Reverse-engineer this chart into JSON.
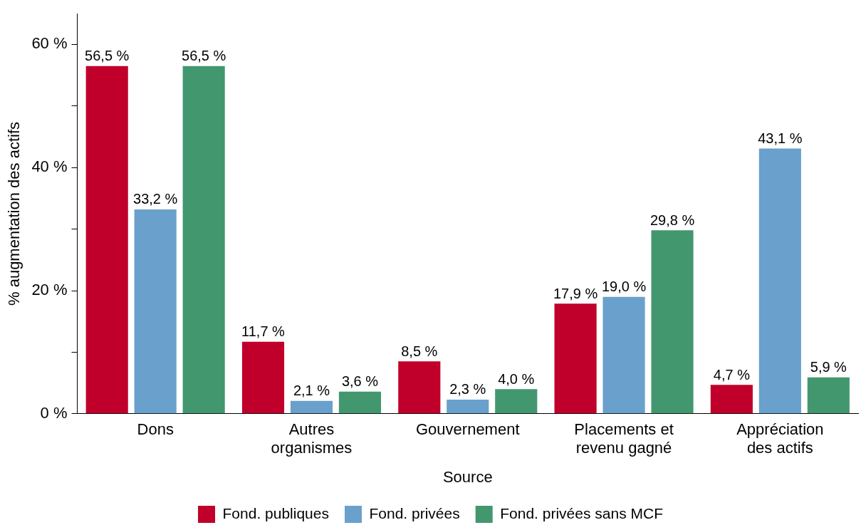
{
  "chart_data": {
    "type": "bar",
    "xlabel": "Source",
    "ylabel": "% augmentation des actifs",
    "categories": [
      "Dons",
      "Autres organismes",
      "Gouvernement",
      "Placements et revenu gagné",
      "Appréciation des actifs"
    ],
    "series": [
      {
        "name": "Fond. publiques",
        "color": "#c0002a",
        "values": [
          56.5,
          11.7,
          8.5,
          17.9,
          4.7
        ],
        "value_labels": [
          "56,5 %",
          "11,7 %",
          "8,5 %",
          "17,9 %",
          "4,7 %"
        ]
      },
      {
        "name": "Fond. privées",
        "color": "#6aa0cc",
        "values": [
          33.2,
          2.1,
          2.3,
          19.0,
          43.1
        ],
        "value_labels": [
          "33,2 %",
          "2,1 %",
          "2,3 %",
          "19,0 %",
          "43,1 %"
        ]
      },
      {
        "name": "Fond. privées sans MCF",
        "color": "#43976f",
        "values": [
          56.5,
          3.6,
          4.0,
          29.8,
          5.9
        ],
        "value_labels": [
          "56,5 %",
          "3,6 %",
          "4,0 %",
          "29,8 %",
          "5,9 %"
        ]
      }
    ],
    "ylim": [
      0,
      65
    ],
    "yticks": [
      {
        "value": 0,
        "label": "0 %"
      },
      {
        "value": 10,
        "label": null
      },
      {
        "value": 20,
        "label": "20 %"
      },
      {
        "value": 30,
        "label": null
      },
      {
        "value": 40,
        "label": "40 %"
      },
      {
        "value": 50,
        "label": null
      },
      {
        "value": 60,
        "label": "60 %"
      }
    ],
    "grid": false,
    "legend": "bottom"
  }
}
